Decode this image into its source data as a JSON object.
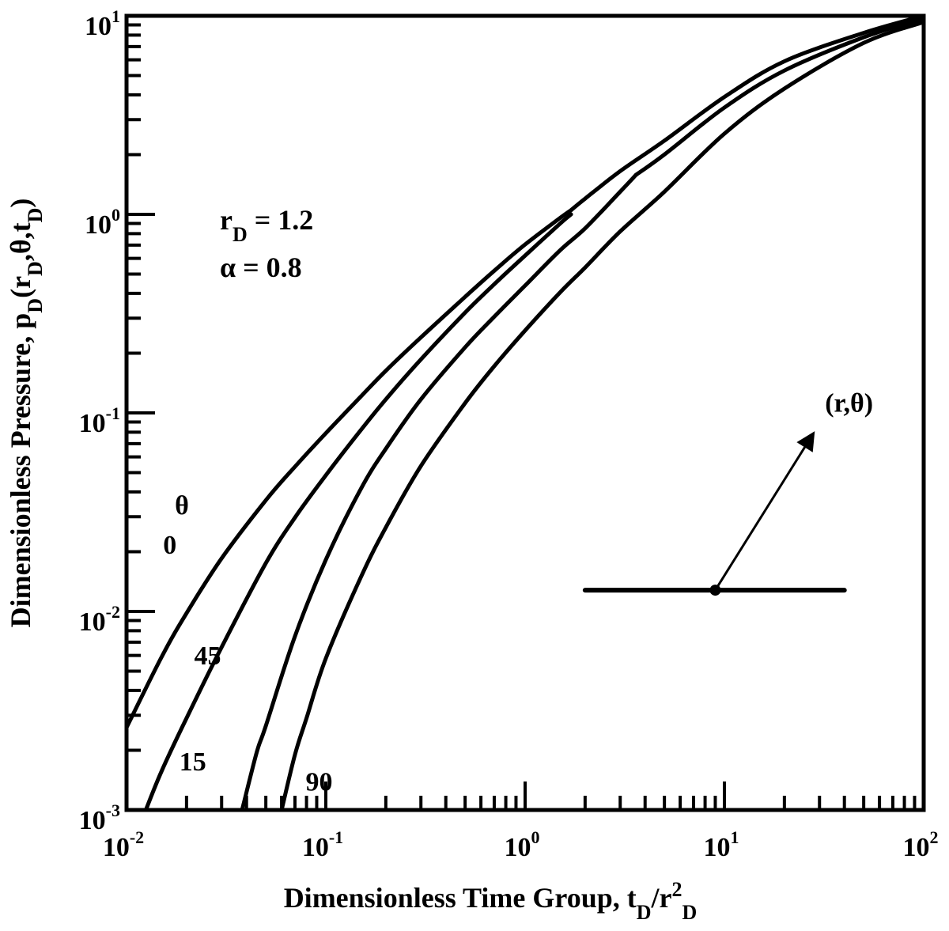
{
  "chart_data": {
    "type": "line",
    "title": "",
    "xlabel": {
      "parts": [
        {
          "text": "Dimensionless Time Group, t",
          "style": "normal"
        },
        {
          "text": "D",
          "style": "sub"
        },
        {
          "text": "/r",
          "style": "normal"
        },
        {
          "text": "2",
          "style": "sup"
        },
        {
          "text": "D",
          "style": "sub"
        }
      ]
    },
    "ylabel": {
      "parts": [
        {
          "text": "Dimensionless Pressure, p",
          "style": "normal"
        },
        {
          "text": "D",
          "style": "sub"
        },
        {
          "text": "(r",
          "style": "normal"
        },
        {
          "text": "D",
          "style": "sub"
        },
        {
          "text": ",θ,t",
          "style": "normal"
        },
        {
          "text": "D",
          "style": "sub"
        },
        {
          "text": ")",
          "style": "normal"
        }
      ]
    },
    "x_scale": "log",
    "y_scale": "log",
    "xlim": [
      0.01,
      100
    ],
    "ylim": [
      0.001,
      10
    ],
    "x_ticks": [
      {
        "value": 0.01,
        "base": "10",
        "exp": "-2"
      },
      {
        "value": 0.1,
        "base": "10",
        "exp": "-1"
      },
      {
        "value": 1,
        "base": "10",
        "exp": "0"
      },
      {
        "value": 10,
        "base": "10",
        "exp": "1"
      },
      {
        "value": 100,
        "base": "10",
        "exp": "2"
      }
    ],
    "y_ticks": [
      {
        "value": 0.001,
        "base": "10",
        "exp": "-3"
      },
      {
        "value": 0.01,
        "base": "10",
        "exp": "-2"
      },
      {
        "value": 0.1,
        "base": "10",
        "exp": "-1"
      },
      {
        "value": 1,
        "base": "10",
        "exp": "0"
      },
      {
        "value": 10,
        "base": "10",
        "exp": "1"
      }
    ],
    "grid": false,
    "legend": "none",
    "series": [
      {
        "label": "0",
        "x": [
          0.01,
          0.015,
          0.02,
          0.03,
          0.05,
          0.07,
          0.1,
          0.15,
          0.2,
          0.3,
          0.5,
          0.7,
          1.0,
          1.5,
          1.7
        ],
        "y": [
          0.0026,
          0.0059,
          0.0098,
          0.0185,
          0.0363,
          0.0536,
          0.079,
          0.121,
          0.163,
          0.24,
          0.384,
          0.52,
          0.705,
          0.96,
          1.05
        ]
      },
      {
        "label": "15",
        "x": [
          0.0125,
          0.015,
          0.02,
          0.03,
          0.05,
          0.07,
          0.1,
          0.15,
          0.2,
          0.3,
          0.5,
          0.7,
          1.0,
          1.5,
          1.7
        ],
        "y": [
          0.001,
          0.00157,
          0.0029,
          0.0066,
          0.0175,
          0.0297,
          0.0485,
          0.082,
          0.117,
          0.186,
          0.32,
          0.445,
          0.62,
          0.9,
          1.0
        ]
      },
      {
        "label": "45",
        "x": [
          0.038,
          0.045,
          0.05,
          0.07,
          0.1,
          0.15,
          0.2,
          0.3,
          0.5,
          0.7,
          1.0,
          1.5,
          2.0,
          3.0,
          3.6
        ],
        "y": [
          0.001,
          0.00195,
          0.00265,
          0.0075,
          0.0182,
          0.0415,
          0.066,
          0.117,
          0.214,
          0.305,
          0.438,
          0.66,
          0.85,
          1.3,
          1.58
        ]
      },
      {
        "label": "90",
        "x": [
          0.06,
          0.07,
          0.08,
          0.1,
          0.15,
          0.2,
          0.3,
          0.5,
          0.7,
          1.0,
          1.5,
          2.0,
          3.0,
          5.0,
          10,
          20,
          50,
          100
        ],
        "y": [
          0.001,
          0.0019,
          0.0029,
          0.0058,
          0.0149,
          0.0265,
          0.054,
          0.112,
          0.172,
          0.26,
          0.405,
          0.54,
          0.82,
          1.3,
          2.55,
          4.3,
          7.3,
          9.3
        ]
      },
      {
        "label": "",
        "x": [
          1.7,
          2.0,
          3.0,
          5.0,
          10,
          20,
          50,
          100
        ],
        "y": [
          1.05,
          1.2,
          1.65,
          2.35,
          3.9,
          5.9,
          8.2,
          10.0
        ]
      },
      {
        "label": "",
        "x": [
          3.6,
          5.0,
          10,
          20,
          50,
          100
        ],
        "y": [
          1.58,
          2.0,
          3.45,
          5.3,
          7.8,
          9.7
        ]
      }
    ],
    "annotations": {
      "params": [
        {
          "parts": [
            {
              "text": "r",
              "style": "normal"
            },
            {
              "text": "D",
              "style": "sub"
            },
            {
              "text": " = 1.2",
              "style": "normal"
            }
          ]
        },
        {
          "parts": [
            {
              "text": "α = 0.8",
              "style": "normal"
            }
          ]
        }
      ],
      "theta_header": "θ",
      "curve_labels": [
        {
          "text": "0",
          "x": 0.0165,
          "y": 0.0195
        },
        {
          "text": "15",
          "x": 0.0215,
          "y": 0.00158
        },
        {
          "text": "45",
          "x": 0.0255,
          "y": 0.0054
        },
        {
          "text": "90",
          "x": 0.0925,
          "y": 0.00125
        }
      ],
      "point_label": "(r,θ)",
      "inset": {
        "segment_x": [
          2.0,
          40
        ],
        "segment_y": 0.0128,
        "origin_x": 9.0,
        "arrow_tip_x": 28,
        "arrow_tip_y": 0.079
      }
    }
  }
}
